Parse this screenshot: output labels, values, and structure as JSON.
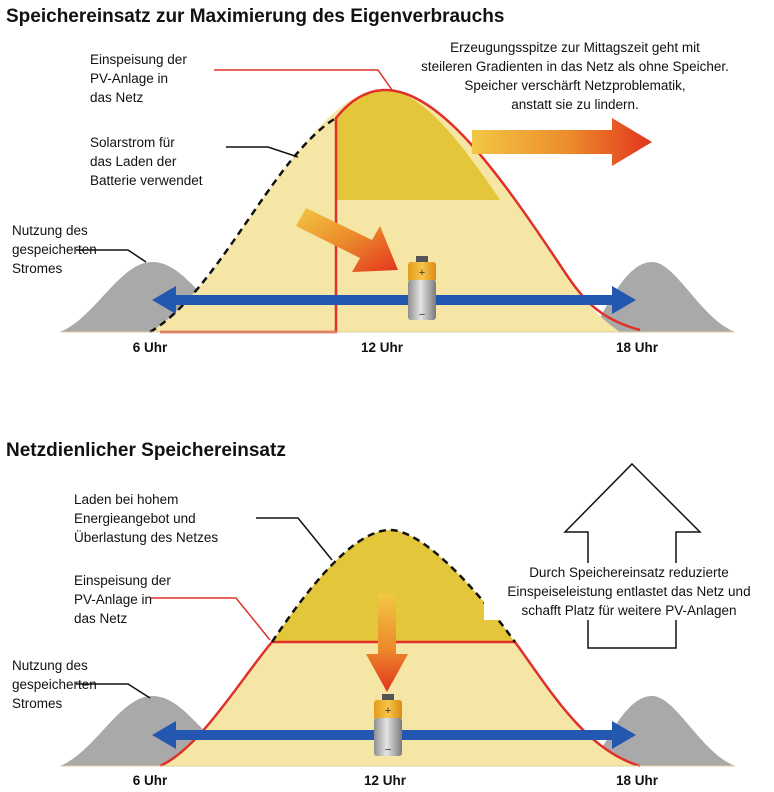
{
  "top": {
    "title": "Speichereinsatz zur Maximierung des Eigenverbrauchs",
    "label_feed": [
      "Einspeisung der",
      "PV-Anlage in",
      "das Netz"
    ],
    "label_solar": [
      "Solarstrom für",
      "das Laden der",
      "Batterie verwendet"
    ],
    "label_usage": [
      "Nutzung des",
      "gespeicherten",
      "Stromes"
    ],
    "callout": [
      "Erzeugungsspitze zur Mittagszeit geht mit",
      "steileren Gradienten in das Netz als ohne Speicher.",
      "Speicher verschärft Netzproblematik,",
      "anstatt sie zu lindern."
    ],
    "ticks": [
      "6 Uhr",
      "12 Uhr",
      "18 Uhr"
    ]
  },
  "bottom": {
    "title": "Netzdienlicher Speichereinsatz",
    "label_charge": [
      "Laden bei hohem",
      "Energieangebot und",
      "Überlastung des Netzes"
    ],
    "label_feed": [
      "Einspeisung der",
      "PV-Anlage in",
      "das Netz"
    ],
    "label_usage": [
      "Nutzung des",
      "gespeicherten",
      "Stromes"
    ],
    "callout": [
      "Durch Speichereinsatz reduzierte",
      "Einspeiseleistung entlastet das Netz und",
      "schafft Platz für weitere PV-Anlagen"
    ],
    "ticks": [
      "6 Uhr",
      "12 Uhr",
      "18 Uhr"
    ]
  },
  "colors": {
    "light_yellow": "#f6e6a6",
    "dark_yellow": "#e3c63a",
    "red_line": "#e0302a",
    "gray_hill": "#a9a9a9",
    "blue_arrow": "#2457b0"
  }
}
